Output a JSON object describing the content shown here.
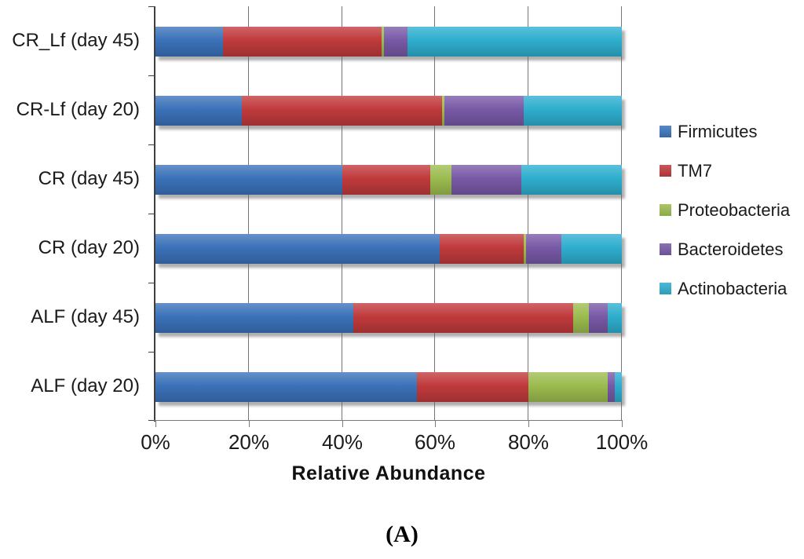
{
  "figure": {
    "caption": "(A)"
  },
  "chart_data": {
    "type": "bar",
    "variant": "horizontal-stacked",
    "title": "",
    "xlabel": "Relative Abundance",
    "ylabel": "",
    "xlim": [
      0,
      100
    ],
    "x_ticks": [
      "0%",
      "20%",
      "40%",
      "60%",
      "80%",
      "100%"
    ],
    "x_tick_values": [
      0,
      20,
      40,
      60,
      80,
      100
    ],
    "grid": "vertical-only",
    "legend_position": "right",
    "categories": [
      "CR_Lf (day 45)",
      "CR-Lf (day 20)",
      "CR (day 45)",
      "CR (day 20)",
      "ALF (day 45)",
      "ALF (day 20)"
    ],
    "series": [
      {
        "name": "Firmicutes",
        "color": "#3B72B9",
        "values": [
          14.5,
          18.5,
          40.0,
          61.0,
          42.5,
          56.0
        ]
      },
      {
        "name": "TM7",
        "color": "#C03A3C",
        "values": [
          34.0,
          43.0,
          19.0,
          18.0,
          47.0,
          24.0
        ]
      },
      {
        "name": "Proteobacteria",
        "color": "#9CBC4F",
        "values": [
          0.5,
          0.5,
          4.5,
          0.5,
          3.5,
          17.0
        ]
      },
      {
        "name": "Bacteroidetes",
        "color": "#7859A6",
        "values": [
          5.0,
          17.0,
          15.0,
          7.5,
          4.0,
          1.5
        ]
      },
      {
        "name": "Actinobacteria",
        "color": "#2EAECE",
        "values": [
          46.0,
          21.0,
          21.5,
          13.0,
          3.0,
          1.5
        ]
      }
    ]
  }
}
